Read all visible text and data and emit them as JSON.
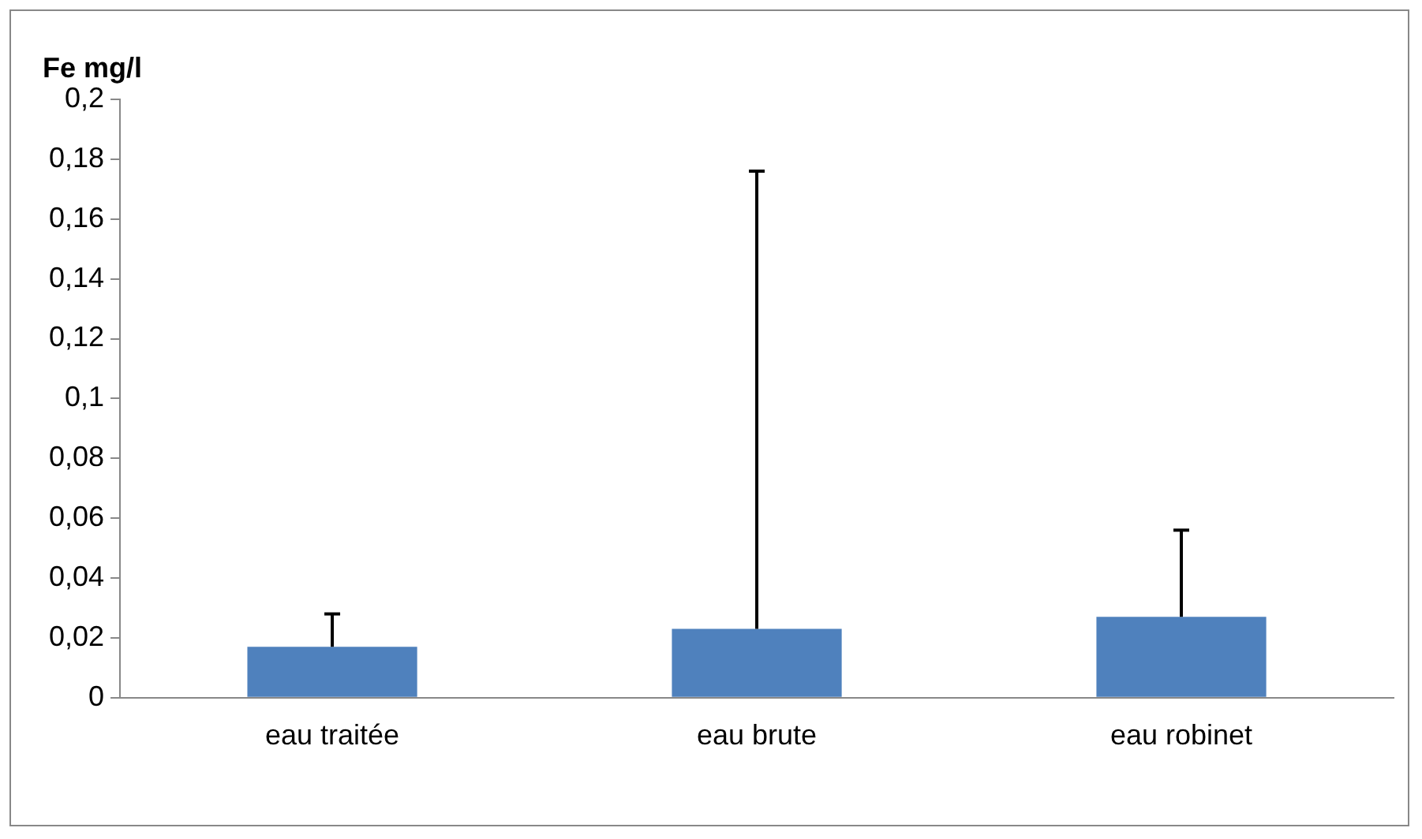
{
  "chart_data": {
    "type": "bar",
    "ylabel": "Fe mg/l",
    "categories": [
      "eau traitée",
      "eau brute",
      "eau robinet"
    ],
    "values": [
      0.017,
      0.023,
      0.027
    ],
    "errors": [
      [
        0.017,
        0.028
      ],
      [
        0.023,
        0.176
      ],
      [
        0.027,
        0.056
      ]
    ],
    "color": "#4f81bd",
    "ylim": [
      0,
      0.2
    ],
    "yticks": [
      {
        "value": 0,
        "label": "0"
      },
      {
        "value": 0.02,
        "label": "0,02"
      },
      {
        "value": 0.04,
        "label": "0,04"
      },
      {
        "value": 0.06,
        "label": "0,06"
      },
      {
        "value": 0.08,
        "label": "0,08"
      },
      {
        "value": 0.1,
        "label": "0,1"
      },
      {
        "value": 0.12,
        "label": "0,12"
      },
      {
        "value": 0.14,
        "label": "0,14"
      },
      {
        "value": 0.16,
        "label": "0,16"
      },
      {
        "value": 0.18,
        "label": "0,18"
      },
      {
        "value": 0.2,
        "label": "0,2"
      }
    ],
    "grid": false,
    "legend": false
  }
}
